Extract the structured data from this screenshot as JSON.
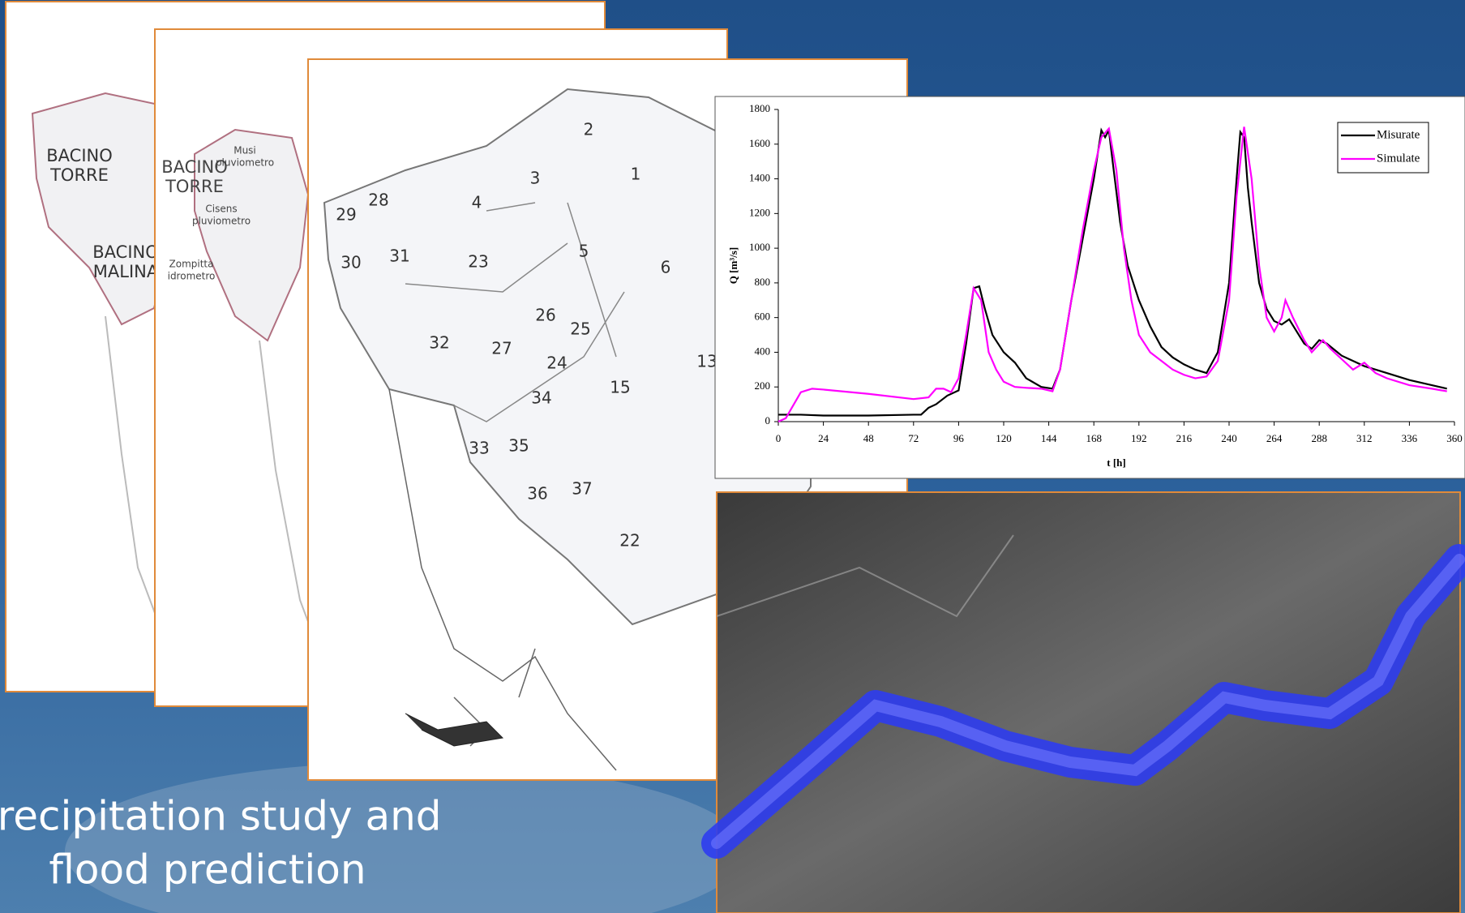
{
  "caption": [
    "Precipitation study and",
    "flood prediction"
  ],
  "map_labels": {
    "basin_map": [
      "BACINO",
      "TORRE",
      "BACINO",
      "MALINA"
    ],
    "gauge_map": [
      "BACINO",
      "TORRE",
      "Musi",
      "pluviometro",
      "Cisens",
      "pluviometro",
      "Zompitta",
      "idrometro"
    ],
    "subbasin_map": [
      "1",
      "2",
      "3",
      "4",
      "5",
      "6",
      "13",
      "15",
      "22",
      "23",
      "24",
      "25",
      "26",
      "27",
      "28",
      "29",
      "30",
      "31",
      "32",
      "33",
      "34",
      "35",
      "36",
      "37"
    ]
  },
  "chart_data": {
    "type": "line",
    "xlabel": "t [h]",
    "ylabel": "Q [m³/s]",
    "xlim": [
      0,
      360
    ],
    "xticks": [
      0,
      24,
      48,
      72,
      96,
      120,
      144,
      168,
      192,
      216,
      240,
      264,
      288,
      312,
      336,
      360
    ],
    "ylim": [
      0,
      1800
    ],
    "yticks": [
      0,
      200,
      400,
      600,
      800,
      1000,
      1200,
      1400,
      1600,
      1800
    ],
    "legend": "upper right",
    "series": [
      {
        "name": "Misurate",
        "color": "#000000",
        "x": [
          0,
          12,
          24,
          48,
          72,
          76,
          80,
          84,
          90,
          96,
          100,
          104,
          107,
          110,
          114,
          120,
          126,
          132,
          140,
          146,
          150,
          156,
          162,
          168,
          172,
          174,
          176,
          178,
          182,
          186,
          192,
          198,
          204,
          210,
          216,
          222,
          228,
          234,
          240,
          244,
          246,
          248,
          250,
          252,
          256,
          260,
          264,
          268,
          272,
          276,
          280,
          284,
          288,
          292,
          300,
          312,
          324,
          336,
          348,
          356
        ],
        "values": [
          40,
          40,
          35,
          35,
          40,
          40,
          80,
          100,
          150,
          180,
          450,
          770,
          780,
          650,
          500,
          400,
          340,
          250,
          200,
          190,
          300,
          700,
          1050,
          1400,
          1680,
          1640,
          1680,
          1500,
          1150,
          900,
          700,
          550,
          430,
          370,
          330,
          300,
          280,
          400,
          800,
          1400,
          1670,
          1640,
          1350,
          1150,
          800,
          650,
          580,
          560,
          590,
          520,
          450,
          420,
          470,
          450,
          380,
          320,
          280,
          240,
          210,
          190
        ]
      },
      {
        "name": "Simulate",
        "color": "#ff00ff",
        "x": [
          0,
          4,
          12,
          18,
          24,
          48,
          72,
          80,
          84,
          88,
          92,
          96,
          100,
          104,
          108,
          112,
          116,
          120,
          126,
          132,
          140,
          146,
          150,
          156,
          162,
          168,
          172,
          176,
          180,
          184,
          188,
          192,
          198,
          204,
          210,
          216,
          222,
          228,
          234,
          240,
          244,
          248,
          252,
          256,
          260,
          264,
          268,
          270,
          274,
          280,
          284,
          290,
          294,
          300,
          306,
          312,
          318,
          324,
          336,
          348,
          356
        ],
        "values": [
          0,
          20,
          170,
          190,
          185,
          160,
          130,
          140,
          190,
          190,
          170,
          250,
          500,
          770,
          700,
          400,
          300,
          230,
          200,
          195,
          190,
          175,
          300,
          700,
          1100,
          1450,
          1640,
          1690,
          1450,
          1000,
          700,
          500,
          400,
          350,
          300,
          270,
          250,
          260,
          350,
          700,
          1300,
          1700,
          1400,
          900,
          600,
          520,
          600,
          700,
          600,
          470,
          400,
          470,
          420,
          360,
          300,
          340,
          280,
          250,
          210,
          190,
          175
        ]
      }
    ]
  }
}
